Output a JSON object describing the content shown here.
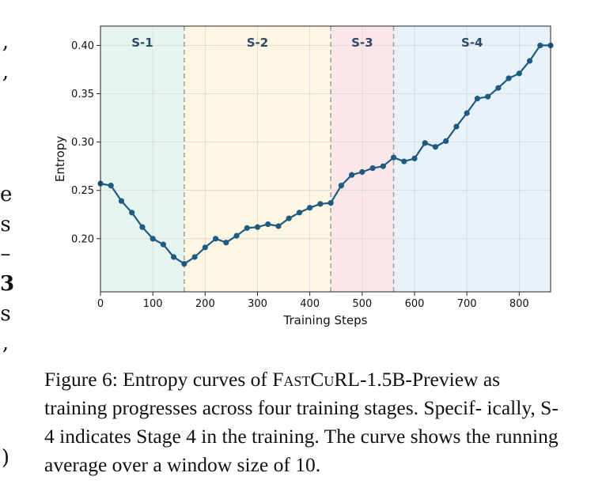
{
  "chart_data": {
    "type": "line",
    "xlabel": "Training Steps",
    "ylabel": "Entropy",
    "xlim": [
      0,
      860
    ],
    "ylim": [
      0.145,
      0.42
    ],
    "xticks": [
      0,
      100,
      200,
      300,
      400,
      500,
      600,
      700,
      800
    ],
    "yticks": [
      0.2,
      0.25,
      0.3,
      0.35,
      0.4
    ],
    "ytick_labels": [
      "0.20",
      "0.25",
      "0.30",
      "0.35",
      "0.40"
    ],
    "grid": true,
    "stages": [
      {
        "label": "S-1",
        "start": 0,
        "end": 160,
        "color": "#e6f4ef"
      },
      {
        "label": "S-2",
        "start": 160,
        "end": 440,
        "color": "#fdf6e2"
      },
      {
        "label": "S-3",
        "start": 440,
        "end": 560,
        "color": "#fbe6e8"
      },
      {
        "label": "S-4",
        "start": 560,
        "end": 860,
        "color": "#e8f2fa"
      }
    ],
    "series": [
      {
        "color": "#1f5a80",
        "x": [
          0,
          20,
          40,
          60,
          80,
          100,
          120,
          140,
          160,
          180,
          200,
          220,
          240,
          260,
          280,
          300,
          320,
          340,
          360,
          380,
          400,
          420,
          440,
          460,
          480,
          500,
          520,
          540,
          560,
          580,
          600,
          620,
          640,
          660,
          680,
          700,
          720,
          740,
          760,
          780,
          800,
          820,
          840,
          860
        ],
        "y": [
          0.257,
          0.255,
          0.239,
          0.227,
          0.212,
          0.2,
          0.194,
          0.181,
          0.174,
          0.181,
          0.191,
          0.2,
          0.196,
          0.203,
          0.211,
          0.212,
          0.215,
          0.213,
          0.221,
          0.227,
          0.232,
          0.236,
          0.237,
          0.255,
          0.266,
          0.269,
          0.273,
          0.275,
          0.284,
          0.28,
          0.283,
          0.299,
          0.295,
          0.301,
          0.316,
          0.33,
          0.345,
          0.347,
          0.356,
          0.366,
          0.371,
          0.384,
          0.4,
          0.4
        ]
      }
    ]
  },
  "margin_chars": [
    ",",
    ",",
    "e",
    "s",
    "–",
    "3",
    "s",
    ",",
    ")"
  ],
  "caption": {
    "prefix": "Figure 6: Entropy curves of ",
    "name": "FastCuRL",
    "suffix": "-1.5B-Preview as training progresses across four training stages. Specif- ically, S-4 indicates Stage 4 in the training. The curve shows the running average over a window size of 10."
  }
}
